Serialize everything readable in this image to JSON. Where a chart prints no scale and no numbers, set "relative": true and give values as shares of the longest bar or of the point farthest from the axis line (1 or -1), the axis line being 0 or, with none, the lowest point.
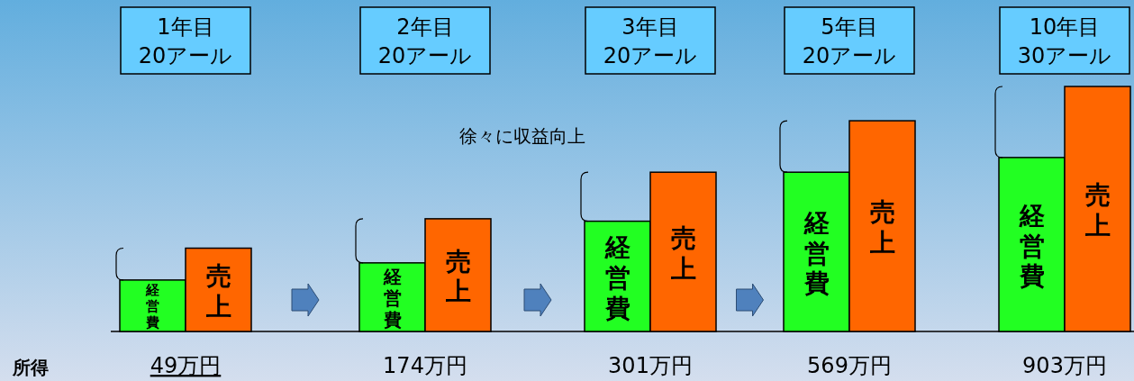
{
  "chart_data": {
    "type": "bar",
    "relative": true,
    "categories": [
      "1年目\n20アール",
      "2年目\n20アール",
      "3年目\n20アール",
      "5年目\n20アール",
      "10年目\n30アール"
    ],
    "series": [
      {
        "name": "経営費",
        "color": "#22ff22",
        "values": [
          0.21,
          0.28,
          0.45,
          0.65,
          0.71
        ]
      },
      {
        "name": "売上",
        "color": "#ff6600",
        "values": [
          0.34,
          0.46,
          0.65,
          0.86,
          1
        ]
      }
    ],
    "annotations": [
      "所得",
      "徐々に収益向上",
      "49万円",
      "174万円",
      "301万円",
      "569万円",
      "903万円"
    ]
  }
}
